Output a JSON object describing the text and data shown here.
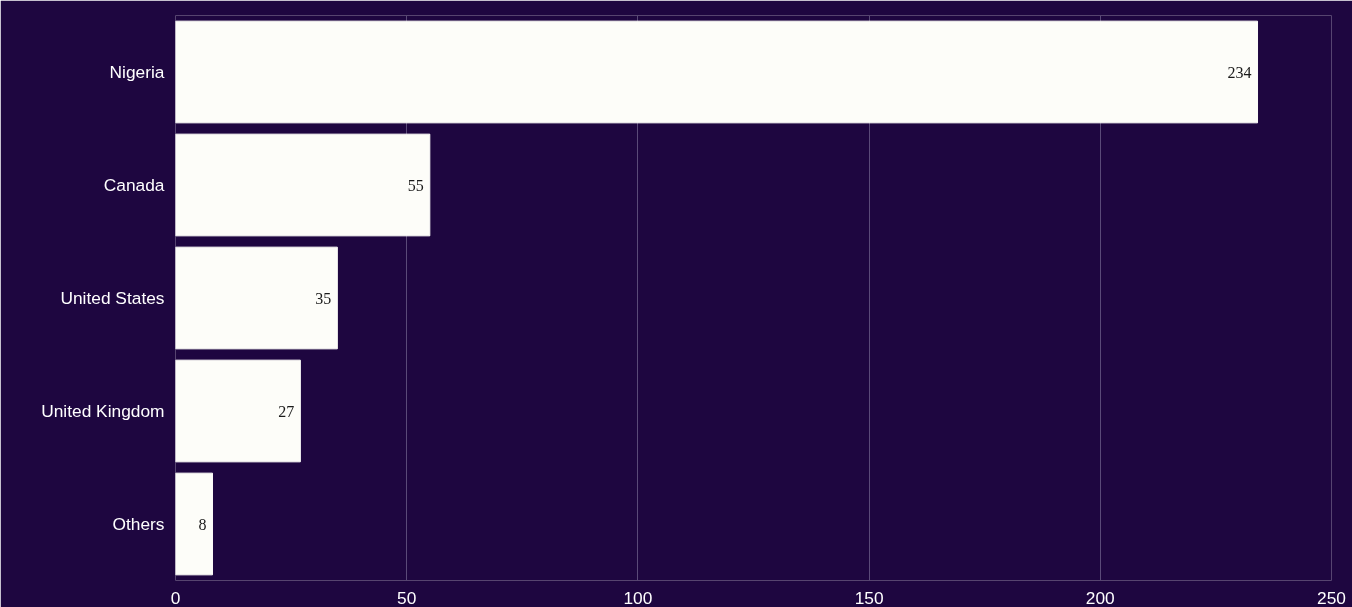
{
  "chart_data": {
    "type": "bar",
    "orientation": "horizontal",
    "categories": [
      "Nigeria",
      "Canada",
      "United States",
      "United Kingdom",
      "Others"
    ],
    "values": [
      234,
      55,
      35,
      27,
      8
    ],
    "color": "#fdfdf9",
    "xlim": [
      0,
      250
    ],
    "xticks": [
      0,
      50,
      100,
      150,
      200,
      250
    ],
    "grid": "x",
    "data_labels": true
  }
}
